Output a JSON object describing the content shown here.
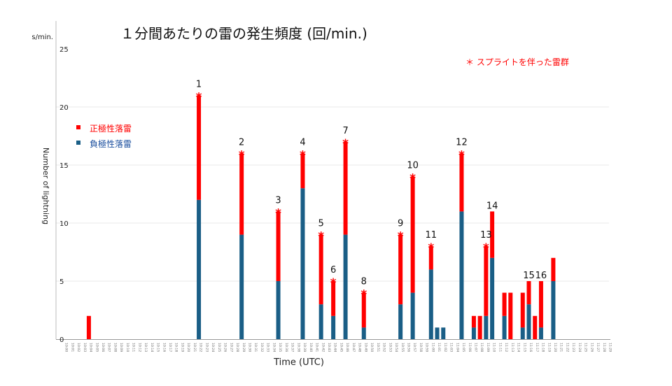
{
  "chart_data": {
    "type": "bar",
    "stacked": true,
    "title": "１分間あたりの雷の発生頻度 (回/min.)",
    "ylabel": "Number of lightning",
    "yunit_fragment": "s/min.",
    "xlabel": "Time (UTC)",
    "ylim": [
      0,
      25
    ],
    "yticks": [
      "0",
      "5",
      "10",
      "15",
      "20",
      "25"
    ],
    "grid": true,
    "legend_position": "left",
    "categories": [
      "10:00",
      "10:01",
      "10:02",
      "10:03",
      "10:04",
      "10:05",
      "10:06",
      "10:07",
      "10:08",
      "10:09",
      "10:10",
      "10:11",
      "10:12",
      "10:13",
      "10:14",
      "10:15",
      "10:16",
      "10:17",
      "10:18",
      "10:19",
      "10:20",
      "10:21",
      "10:22",
      "10:23",
      "10:24",
      "10:25",
      "10:26",
      "10:27",
      "10:28",
      "10:29",
      "10:30",
      "10:31",
      "10:32",
      "10:33",
      "10:34",
      "10:35",
      "10:36",
      "10:37",
      "10:38",
      "10:39",
      "10:40",
      "10:41",
      "10:42",
      "10:43",
      "10:44",
      "10:45",
      "10:46",
      "10:47",
      "10:48",
      "10:49",
      "10:50",
      "10:51",
      "10:52",
      "10:53",
      "10:54",
      "10:55",
      "10:56",
      "10:57",
      "10:58",
      "10:59",
      "11:00",
      "11:01",
      "11:02",
      "11:03",
      "11:04",
      "11:05",
      "11:06",
      "11:07",
      "11:08",
      "11:09",
      "11:10",
      "11:11",
      "11:12",
      "11:13",
      "11:14",
      "11:15",
      "11:16",
      "11:17",
      "11:18",
      "11:19",
      "11:20",
      "11:21",
      "11:22",
      "11:23",
      "11:24",
      "11:25",
      "11:26",
      "11:27",
      "11:28",
      "11:29"
    ],
    "series": [
      {
        "name": "負極性落雷",
        "color": "#1a5e86",
        "values": [
          0,
          0,
          0,
          0,
          0,
          0,
          0,
          0,
          0,
          0,
          0,
          0,
          0,
          0,
          0,
          0,
          0,
          0,
          0,
          0,
          0,
          0,
          12,
          0,
          0,
          0,
          0,
          0,
          0,
          9,
          0,
          0,
          0,
          0,
          0,
          5,
          0,
          0,
          0,
          13,
          0,
          0,
          3,
          0,
          2,
          0,
          9,
          0,
          0,
          1,
          0,
          0,
          0,
          0,
          0,
          3,
          0,
          4,
          0,
          0,
          6,
          1,
          1,
          0,
          0,
          11,
          0,
          1,
          0,
          2,
          7,
          0,
          2,
          0,
          0,
          1,
          3,
          0,
          1,
          0,
          5,
          0,
          0,
          0,
          0,
          0,
          0,
          0,
          0,
          0
        ]
      },
      {
        "name": "正極性落雷",
        "color": "#ff0000",
        "values": [
          0,
          0,
          0,
          0,
          2,
          0,
          0,
          0,
          0,
          0,
          0,
          0,
          0,
          0,
          0,
          0,
          0,
          0,
          0,
          0,
          0,
          0,
          9,
          0,
          0,
          0,
          0,
          0,
          0,
          7,
          0,
          0,
          0,
          0,
          0,
          6,
          0,
          0,
          0,
          3,
          0,
          0,
          6,
          0,
          3,
          0,
          8,
          0,
          0,
          3,
          0,
          0,
          0,
          0,
          0,
          6,
          0,
          10,
          0,
          0,
          2,
          0,
          0,
          0,
          0,
          5,
          0,
          1,
          2,
          6,
          4,
          0,
          2,
          4,
          0,
          3,
          2,
          2,
          4,
          0,
          2,
          0,
          0,
          0,
          0,
          0,
          0,
          0,
          0,
          0
        ]
      }
    ],
    "annotations": [
      {
        "x": "10:22",
        "label": "1",
        "sprite": true
      },
      {
        "x": "10:29",
        "label": "2",
        "sprite": true
      },
      {
        "x": "10:35",
        "label": "3",
        "sprite": true
      },
      {
        "x": "10:39",
        "label": "4",
        "sprite": true
      },
      {
        "x": "10:42",
        "label": "5",
        "sprite": true
      },
      {
        "x": "10:44",
        "label": "6",
        "sprite": true
      },
      {
        "x": "10:46",
        "label": "7",
        "sprite": true
      },
      {
        "x": "10:49",
        "label": "8",
        "sprite": true
      },
      {
        "x": "10:55",
        "label": "9",
        "sprite": true
      },
      {
        "x": "10:57",
        "label": "10",
        "sprite": true
      },
      {
        "x": "11:00",
        "label": "11",
        "sprite": true
      },
      {
        "x": "11:05",
        "label": "12",
        "sprite": true
      },
      {
        "x": "11:09",
        "label": "13",
        "sprite": true
      },
      {
        "x": "11:10",
        "label": "14",
        "sprite": false
      },
      {
        "x": "11:16",
        "label": "15",
        "sprite": false
      },
      {
        "x": "11:18",
        "label": "16",
        "sprite": false
      }
    ],
    "sprite_marker": "*",
    "sprite_note": "＊ スプライトを伴った雷群"
  }
}
